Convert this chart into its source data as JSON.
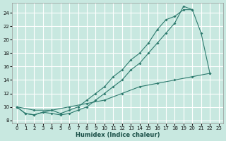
{
  "xlabel": "Humidex (Indice chaleur)",
  "bg_color": "#c8e8e0",
  "grid_color": "#ffffff",
  "line_color": "#2d7a6e",
  "xlim": [
    -0.5,
    23.5
  ],
  "ylim": [
    7.5,
    25.5
  ],
  "xticks": [
    0,
    1,
    2,
    3,
    4,
    5,
    6,
    7,
    8,
    9,
    10,
    11,
    12,
    13,
    14,
    15,
    16,
    17,
    18,
    19,
    20,
    21,
    22,
    23
  ],
  "yticks": [
    8,
    10,
    12,
    14,
    16,
    18,
    20,
    22,
    24
  ],
  "curve_upper_x": [
    0,
    1,
    2,
    3,
    4,
    5,
    6,
    7,
    8,
    9,
    10,
    11,
    12,
    13,
    14,
    15,
    16,
    17,
    18,
    19,
    20,
    21,
    22
  ],
  "curve_upper_y": [
    10,
    9,
    8.8,
    9.2,
    9,
    8.8,
    9,
    9.5,
    10,
    11,
    12,
    13,
    14,
    15.5,
    16.5,
    18,
    19.5,
    21,
    22.5,
    25,
    24.5,
    21,
    15
  ],
  "curve_middle_x": [
    0,
    1,
    2,
    3,
    4,
    5,
    6,
    7,
    8,
    9,
    10,
    11,
    12,
    13,
    14,
    15,
    16,
    17,
    18,
    19,
    20
  ],
  "curve_middle_y": [
    10,
    9,
    8.8,
    9.2,
    9.5,
    9,
    9.5,
    10,
    11,
    12,
    13,
    14.5,
    15.5,
    17,
    18,
    19.5,
    21.5,
    23,
    23.5,
    24.5,
    24.5
  ],
  "curve_lower_x": [
    0,
    2,
    4,
    6,
    8,
    10,
    12,
    14,
    16,
    18,
    20,
    22
  ],
  "curve_lower_y": [
    10,
    9.5,
    9.5,
    10,
    10.5,
    11,
    12,
    13,
    13.5,
    14,
    14.5,
    15
  ]
}
